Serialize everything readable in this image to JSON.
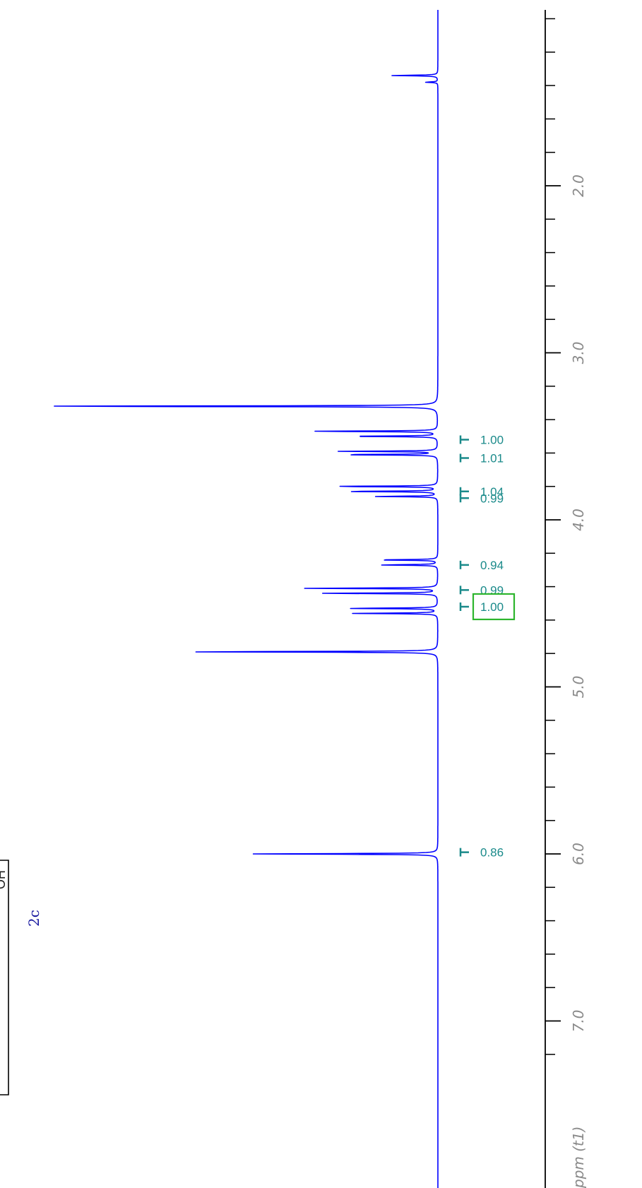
{
  "chart_data": {
    "type": "line",
    "orientation": "rotated-90",
    "xlabel": "ppm (t1)",
    "xlim": [
      0.75,
      7.3
    ],
    "major_ticks": [
      {
        "value": 2.0,
        "label": "2.0"
      },
      {
        "value": 3.0,
        "label": "3.0"
      },
      {
        "value": 4.0,
        "label": "4.0"
      },
      {
        "value": 5.0,
        "label": "5.0"
      },
      {
        "value": 6.0,
        "label": "6.0"
      },
      {
        "value": 7.0,
        "label": "7.0"
      }
    ],
    "minor_ticks": [
      1.0,
      1.2,
      1.4,
      1.6,
      1.8,
      2.2,
      2.4,
      2.6,
      2.8,
      3.2,
      3.4,
      3.6,
      3.8,
      4.2,
      4.4,
      4.6,
      4.8,
      5.2,
      5.4,
      5.6,
      5.8,
      6.2,
      6.4,
      6.6,
      6.8,
      7.2
    ],
    "peaks": [
      {
        "ppm": 1.34,
        "intensity": 0.11
      },
      {
        "ppm": 1.38,
        "intensity": 0.03
      },
      {
        "ppm": 3.32,
        "intensity": 1.0
      },
      {
        "ppm": 3.47,
        "intensity": 0.31
      },
      {
        "ppm": 3.5,
        "intensity": 0.22
      },
      {
        "ppm": 3.59,
        "intensity": 0.23
      },
      {
        "ppm": 3.61,
        "intensity": 0.24
      },
      {
        "ppm": 3.8,
        "intensity": 0.26
      },
      {
        "ppm": 3.83,
        "intensity": 0.23
      },
      {
        "ppm": 3.86,
        "intensity": 0.15
      },
      {
        "ppm": 4.24,
        "intensity": 0.15
      },
      {
        "ppm": 4.27,
        "intensity": 0.14
      },
      {
        "ppm": 4.41,
        "intensity": 0.31
      },
      {
        "ppm": 4.44,
        "intensity": 0.27
      },
      {
        "ppm": 4.53,
        "intensity": 0.22
      },
      {
        "ppm": 4.56,
        "intensity": 0.2
      },
      {
        "ppm": 4.79,
        "intensity": 0.62
      },
      {
        "ppm": 6.0,
        "intensity": 0.43
      }
    ],
    "integrals": [
      {
        "ppm": 3.52,
        "value": "1.00"
      },
      {
        "ppm": 3.63,
        "value": "1.01"
      },
      {
        "ppm": 3.83,
        "value": "1.04"
      },
      {
        "ppm": 3.87,
        "value": "0.99"
      },
      {
        "ppm": 4.27,
        "value": "0.94"
      },
      {
        "ppm": 4.42,
        "value": "0.99"
      },
      {
        "ppm": 4.52,
        "value": "1.00"
      },
      {
        "ppm": 5.99,
        "value": "0.86"
      }
    ],
    "selected_integral": 6
  },
  "structure": {
    "label": "2c",
    "fragment_text": "OH"
  },
  "colors": {
    "spectrum": "#0000ff",
    "integral": "#1a8a8a",
    "selection_box": "#2db52d",
    "axis": "#000000",
    "tick_label": "#8a8a8a",
    "compound_label": "#1a1aa0"
  }
}
